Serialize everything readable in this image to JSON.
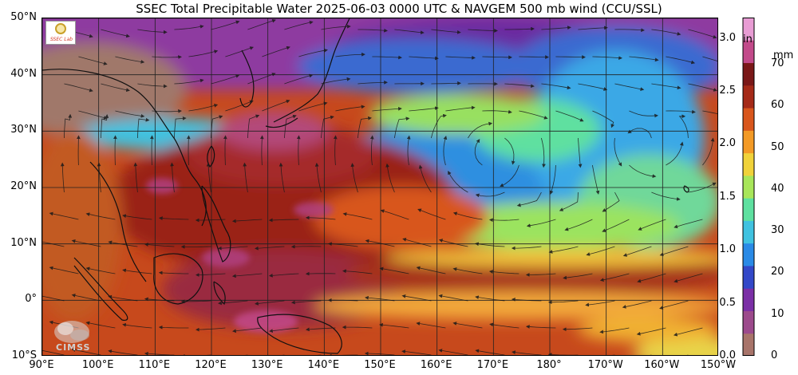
{
  "title": "SSEC Total Precipitable Water  2025-06-03 0000 UTC & NAVGEM 500 mb wind (CCU/SSL)",
  "map": {
    "lon_range": [
      90,
      210
    ],
    "lat_range": [
      -10,
      50
    ],
    "lat_ticks": [
      {
        "lat": 50,
        "label": "50°N"
      },
      {
        "lat": 40,
        "label": "40°N"
      },
      {
        "lat": 30,
        "label": "30°N"
      },
      {
        "lat": 20,
        "label": "20°N"
      },
      {
        "lat": 10,
        "label": "10°N"
      },
      {
        "lat": 0,
        "label": "0°"
      },
      {
        "lat": -10,
        "label": "10°S"
      }
    ],
    "lon_ticks": [
      {
        "lon": 90,
        "label": "90°E"
      },
      {
        "lon": 100,
        "label": "100°E"
      },
      {
        "lon": 110,
        "label": "110°E"
      },
      {
        "lon": 120,
        "label": "120°E"
      },
      {
        "lon": 130,
        "label": "130°E"
      },
      {
        "lon": 140,
        "label": "140°E"
      },
      {
        "lon": 150,
        "label": "150°E"
      },
      {
        "lon": 160,
        "label": "160°E"
      },
      {
        "lon": 170,
        "label": "170°E"
      },
      {
        "lon": 180,
        "label": "180°"
      },
      {
        "lon": 190,
        "label": "170°W"
      },
      {
        "lon": 200,
        "label": "160°W"
      },
      {
        "lon": 210,
        "label": "150°W"
      }
    ],
    "grid": true,
    "field": "total precipitable water",
    "wind_level": "500 mb"
  },
  "colorbar": {
    "unit_in": "in",
    "unit_mm": "mm",
    "colors": [
      "#a8746a",
      "#9c4a8c",
      "#7b2fa6",
      "#3348c8",
      "#2a8ae6",
      "#40c2e0",
      "#5ee0a0",
      "#a8e65a",
      "#f0d23a",
      "#f39a26",
      "#d8561c",
      "#a52a18",
      "#7a1818",
      "#c24a8a",
      "#e89cd4"
    ],
    "in_ticks": [
      {
        "value": 0.0,
        "label": "0.0"
      },
      {
        "value": 0.5,
        "label": "0.5"
      },
      {
        "value": 1.0,
        "label": "1.0"
      },
      {
        "value": 1.5,
        "label": "1.5"
      },
      {
        "value": 2.0,
        "label": "2.0"
      },
      {
        "value": 2.5,
        "label": "2.5"
      },
      {
        "value": 3.0,
        "label": "3.0"
      }
    ],
    "mm_ticks": [
      {
        "value": 0,
        "label": "0"
      },
      {
        "value": 10,
        "label": "10"
      },
      {
        "value": 20,
        "label": "20"
      },
      {
        "value": 30,
        "label": "30"
      },
      {
        "value": 40,
        "label": "40"
      },
      {
        "value": 50,
        "label": "50"
      },
      {
        "value": 60,
        "label": "60"
      },
      {
        "value": 70,
        "label": "70"
      }
    ]
  },
  "logos": {
    "ssec": "SSEC logo",
    "cimss": "CIMSS"
  }
}
